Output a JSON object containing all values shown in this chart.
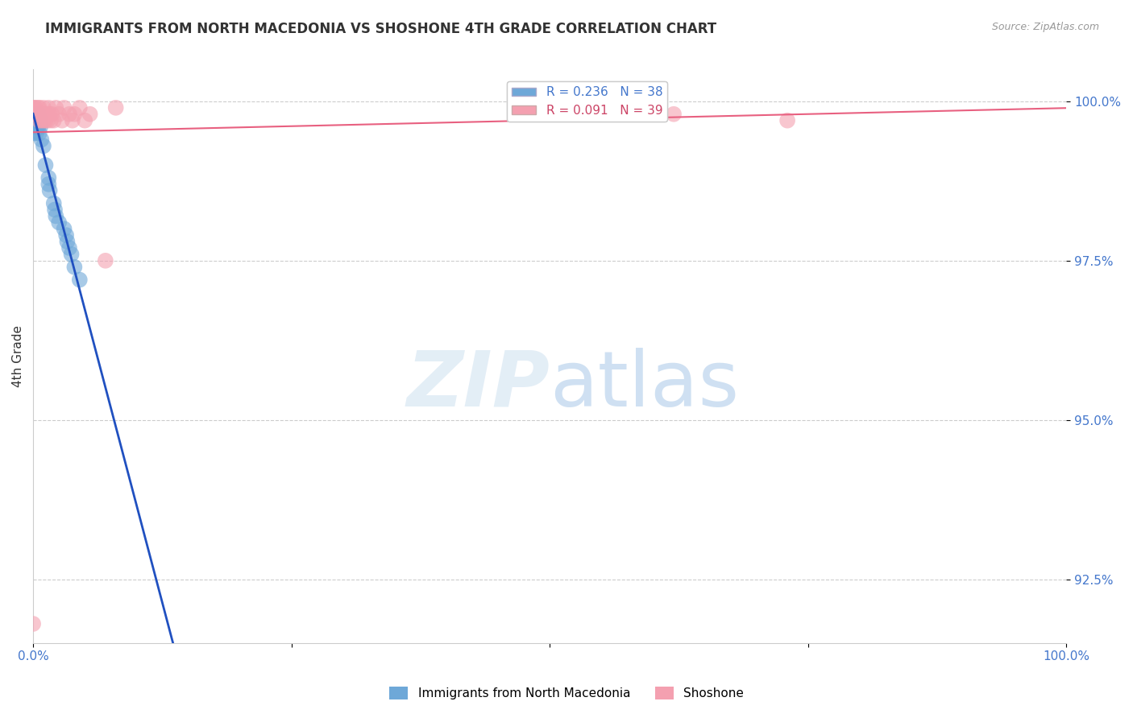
{
  "title": "IMMIGRANTS FROM NORTH MACEDONIA VS SHOSHONE 4TH GRADE CORRELATION CHART",
  "source": "Source: ZipAtlas.com",
  "ylabel": "4th Grade",
  "xlim": [
    0.0,
    1.0
  ],
  "ylim": [
    0.915,
    1.005
  ],
  "yticks": [
    0.925,
    0.95,
    0.975,
    1.0
  ],
  "ytick_labels": [
    "92.5%",
    "95.0%",
    "97.5%",
    "100.0%"
  ],
  "xtick_labels": [
    "0.0%",
    "100.0%"
  ],
  "legend_text_blue": "R = 0.236   N = 38",
  "legend_text_pink": "R = 0.091   N = 39",
  "blue_color": "#6ea8d8",
  "pink_color": "#f4a0b0",
  "blue_line_color": "#2050c0",
  "pink_line_color": "#e86080",
  "blue_scatter_x": [
    0.0,
    0.0,
    0.0,
    0.001,
    0.001,
    0.001,
    0.001,
    0.002,
    0.002,
    0.002,
    0.003,
    0.003,
    0.003,
    0.004,
    0.004,
    0.005,
    0.005,
    0.006,
    0.006,
    0.007,
    0.007,
    0.008,
    0.01,
    0.012,
    0.015,
    0.015,
    0.016,
    0.02,
    0.021,
    0.022,
    0.025,
    0.03,
    0.032,
    0.033,
    0.035,
    0.037,
    0.04,
    0.045
  ],
  "blue_scatter_y": [
    0.998,
    0.997,
    0.996,
    0.998,
    0.997,
    0.996,
    0.995,
    0.998,
    0.997,
    0.996,
    0.997,
    0.996,
    0.995,
    0.997,
    0.996,
    0.998,
    0.996,
    0.997,
    0.995,
    0.997,
    0.996,
    0.994,
    0.993,
    0.99,
    0.988,
    0.987,
    0.986,
    0.984,
    0.983,
    0.982,
    0.981,
    0.98,
    0.979,
    0.978,
    0.977,
    0.976,
    0.974,
    0.972
  ],
  "pink_scatter_x": [
    0.0,
    0.0,
    0.001,
    0.002,
    0.002,
    0.003,
    0.004,
    0.005,
    0.005,
    0.006,
    0.006,
    0.007,
    0.008,
    0.009,
    0.01,
    0.01,
    0.011,
    0.012,
    0.013,
    0.014,
    0.015,
    0.016,
    0.017,
    0.018,
    0.02,
    0.022,
    0.025,
    0.028,
    0.03,
    0.035,
    0.038,
    0.04,
    0.045,
    0.05,
    0.055,
    0.07,
    0.08,
    0.62,
    0.73
  ],
  "pink_scatter_y": [
    0.918,
    0.999,
    0.999,
    0.999,
    0.998,
    0.998,
    0.998,
    0.999,
    0.998,
    0.999,
    0.997,
    0.998,
    0.997,
    0.998,
    0.999,
    0.997,
    0.998,
    0.997,
    0.998,
    0.997,
    0.999,
    0.998,
    0.997,
    0.998,
    0.997,
    0.999,
    0.998,
    0.997,
    0.999,
    0.998,
    0.997,
    0.998,
    0.999,
    0.997,
    0.998,
    0.975,
    0.999,
    0.998,
    0.997
  ],
  "background_color": "#ffffff",
  "grid_color": "#cccccc"
}
